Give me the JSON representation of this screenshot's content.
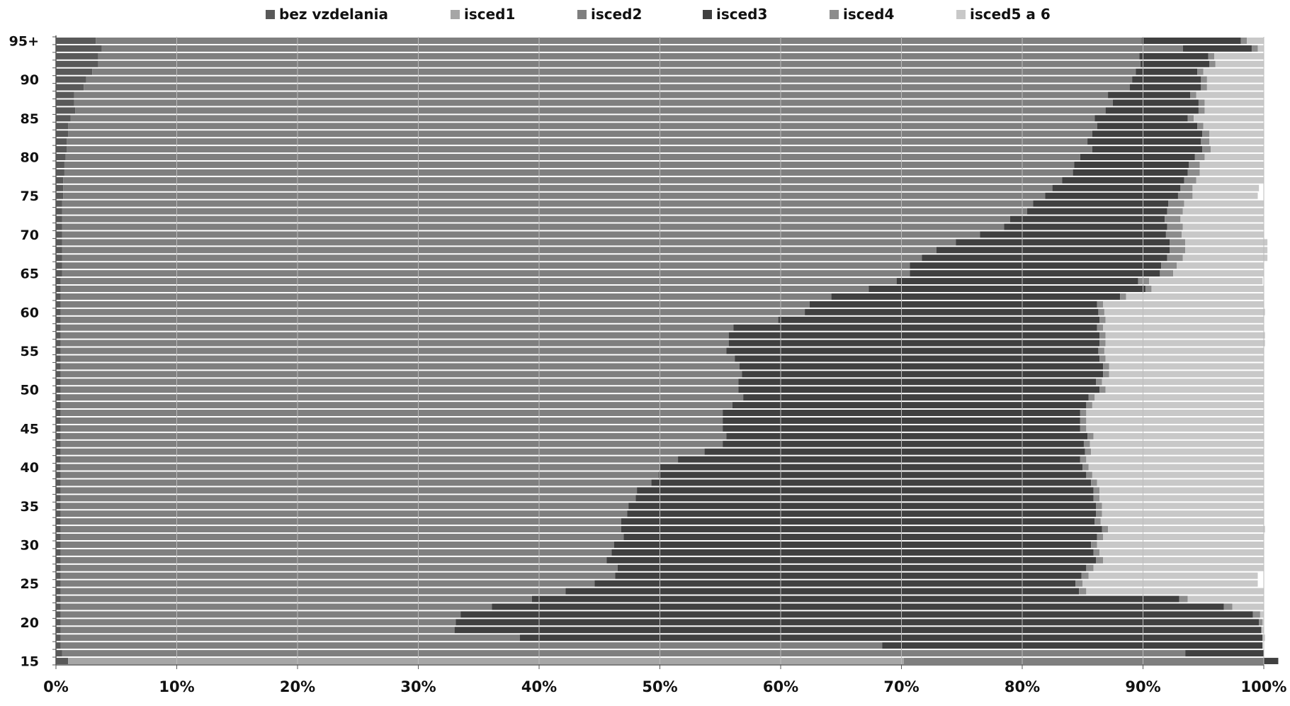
{
  "chart_data": {
    "type": "bar",
    "orientation": "horizontal-stacked-100",
    "title": "",
    "xlabel": "",
    "ylabel": "",
    "xlim": [
      0,
      100
    ],
    "x_ticks": [
      "0%",
      "10%",
      "20%",
      "30%",
      "40%",
      "50%",
      "60%",
      "70%",
      "80%",
      "90%",
      "100%"
    ],
    "y_tick_labels": [
      {
        "age": 15,
        "label": "15"
      },
      {
        "age": 20,
        "label": "20"
      },
      {
        "age": 25,
        "label": "25"
      },
      {
        "age": 30,
        "label": "30"
      },
      {
        "age": 35,
        "label": "35"
      },
      {
        "age": 40,
        "label": "40"
      },
      {
        "age": 45,
        "label": "45"
      },
      {
        "age": 50,
        "label": "50"
      },
      {
        "age": 55,
        "label": "55"
      },
      {
        "age": 60,
        "label": "60"
      },
      {
        "age": 65,
        "label": "65"
      },
      {
        "age": 70,
        "label": "70"
      },
      {
        "age": 75,
        "label": "75"
      },
      {
        "age": 80,
        "label": "80"
      },
      {
        "age": 85,
        "label": "85"
      },
      {
        "age": 90,
        "label": "90"
      },
      {
        "age": 95,
        "label": "95+"
      }
    ],
    "grid": "vertical",
    "legend": "top",
    "categories": [
      15,
      16,
      17,
      18,
      19,
      20,
      21,
      22,
      23,
      24,
      25,
      26,
      27,
      28,
      29,
      30,
      31,
      32,
      33,
      34,
      35,
      36,
      37,
      38,
      39,
      40,
      41,
      42,
      43,
      44,
      45,
      46,
      47,
      48,
      49,
      50,
      51,
      52,
      53,
      54,
      55,
      56,
      57,
      58,
      59,
      60,
      61,
      62,
      63,
      64,
      65,
      66,
      67,
      68,
      69,
      70,
      71,
      72,
      73,
      74,
      75,
      76,
      77,
      78,
      79,
      80,
      81,
      82,
      83,
      84,
      85,
      86,
      87,
      88,
      89,
      90,
      91,
      92,
      93,
      94,
      95
    ],
    "series": [
      {
        "name": "bez vzdelania",
        "color": "#595959",
        "values": [
          1,
          0.5,
          0.4,
          0.4,
          0.4,
          0.4,
          0.4,
          0.4,
          0.4,
          0.4,
          0.4,
          0.4,
          0.4,
          0.4,
          0.4,
          0.4,
          0.4,
          0.4,
          0.4,
          0.4,
          0.4,
          0.4,
          0.4,
          0.4,
          0.4,
          0.4,
          0.4,
          0.4,
          0.4,
          0.4,
          0.4,
          0.4,
          0.4,
          0.4,
          0.4,
          0.4,
          0.4,
          0.4,
          0.4,
          0.4,
          0.4,
          0.4,
          0.4,
          0.4,
          0.4,
          0.4,
          0.4,
          0.4,
          0.4,
          0.4,
          0.5,
          0.5,
          0.5,
          0.5,
          0.5,
          0.5,
          0.5,
          0.5,
          0.5,
          0.5,
          0.6,
          0.6,
          0.6,
          0.7,
          0.7,
          0.8,
          0.9,
          0.9,
          1.0,
          1.0,
          1.2,
          1.6,
          1.5,
          1.5,
          2.3,
          2.5,
          3.0,
          3.5,
          3.5,
          3.8,
          3.3
        ]
      },
      {
        "name": "isced1",
        "color": "#a6a6a6",
        "values": [
          69.2,
          0,
          0,
          0,
          0,
          0,
          0,
          0,
          0,
          0,
          0,
          0,
          0,
          0,
          0,
          0,
          0,
          0,
          0,
          0,
          0,
          0,
          0,
          0,
          0,
          0,
          0,
          0,
          0,
          0,
          0,
          0,
          0,
          0,
          0,
          0,
          0,
          0,
          0,
          0,
          0,
          0,
          0,
          0,
          0,
          0,
          0,
          0,
          0,
          0,
          0,
          0,
          0,
          0,
          0,
          0,
          0,
          0,
          0,
          0,
          0,
          0,
          0,
          0,
          0,
          0,
          0,
          0,
          0,
          0,
          0,
          0,
          0,
          0,
          0,
          0,
          0,
          0,
          0,
          0,
          0
        ]
      },
      {
        "name": "isced2",
        "color": "#7f7f7f",
        "values": [
          29.8,
          93.0,
          68.0,
          38.0,
          32.6,
          32.7,
          33.1,
          35.7,
          39.0,
          41.8,
          44.2,
          45.9,
          46.1,
          45.2,
          45.6,
          45.8,
          46.6,
          46.4,
          46.4,
          46.9,
          47.0,
          47.6,
          47.7,
          48.9,
          49.5,
          49.6,
          51.1,
          53.3,
          54.8,
          55.1,
          54.8,
          54.8,
          54.8,
          55.6,
          56.5,
          56.1,
          56.1,
          56.4,
          56.2,
          55.8,
          55.1,
          55.3,
          55.3,
          55.7,
          59.4,
          61.6,
          62.0,
          63.8,
          66.9,
          69.2,
          70.2,
          70.2,
          71.2,
          72.4,
          74.0,
          76.0,
          78.0,
          78.5,
          79.9,
          80.4,
          81.3,
          81.9,
          82.7,
          83.5,
          83.6,
          84.0,
          84.9,
          84.5,
          84.8,
          85.2,
          84.8,
          85.3,
          86.0,
          85.6,
          86.6,
          86.6,
          86.4,
          86.3,
          86.2,
          89.5,
          86.6
        ]
      },
      {
        "name": "isced3",
        "color": "#404040",
        "values": [
          1.2,
          6.5,
          31.5,
          61.5,
          66.8,
          66.5,
          65.6,
          60.6,
          53.6,
          42.5,
          39.8,
          38.6,
          38.8,
          40.5,
          39.9,
          39.5,
          39.2,
          39.8,
          39.2,
          38.8,
          38.7,
          37.9,
          37.8,
          36.4,
          35.4,
          35.0,
          33.3,
          31.5,
          29.9,
          29.9,
          29.6,
          29.6,
          29.6,
          29.3,
          28.6,
          29.9,
          29.6,
          29.9,
          30.1,
          30.2,
          30.8,
          30.7,
          30.7,
          30.1,
          26.6,
          24.3,
          23.8,
          23.9,
          22.9,
          20.0,
          20.7,
          20.8,
          20.3,
          19.3,
          17.7,
          15.4,
          13.5,
          12.8,
          11.6,
          11.2,
          11.0,
          10.6,
          10.1,
          9.5,
          9.5,
          9.5,
          9.1,
          9.4,
          9.1,
          8.3,
          7.7,
          7.7,
          7.1,
          6.8,
          5.9,
          5.7,
          5.1,
          5.7,
          5.7,
          5.7,
          8.2
        ]
      },
      {
        "name": "isced4",
        "color": "#8c8c8c",
        "values": [
          0,
          0,
          0,
          0,
          0,
          0.3,
          0.6,
          0.7,
          0.7,
          0.6,
          0.6,
          0.6,
          0.6,
          0.6,
          0.5,
          0.5,
          0.5,
          0.5,
          0.5,
          0.5,
          0.5,
          0.5,
          0.5,
          0.5,
          0.5,
          0.5,
          0.5,
          0.5,
          0.5,
          0.5,
          0.5,
          0.5,
          0.5,
          0.5,
          0.5,
          0.5,
          0.5,
          0.5,
          0.5,
          0.5,
          0.5,
          0.5,
          0.5,
          0.5,
          0.5,
          0.5,
          0.5,
          0.5,
          0.5,
          0.9,
          1.1,
          1.3,
          1.3,
          1.3,
          1.3,
          1.3,
          1.3,
          1.3,
          1.3,
          1.3,
          1.2,
          1.0,
          1.0,
          1.0,
          0.9,
          0.8,
          0.7,
          0.7,
          0.6,
          0.5,
          0.5,
          0.5,
          0.5,
          0.5,
          0.5,
          0.5,
          0.5,
          0.5,
          0.5,
          0.5,
          0.5
        ]
      },
      {
        "name": "isced5 a 6",
        "color": "#c8c8c8",
        "values": [
          0,
          0,
          0,
          0.2,
          0.2,
          0.1,
          0.3,
          2.6,
          6.3,
          14.7,
          14.5,
          14.0,
          14.1,
          13.3,
          13.6,
          13.8,
          13.3,
          13.0,
          13.5,
          13.4,
          13.4,
          13.6,
          13.6,
          13.8,
          14.2,
          14.5,
          14.7,
          14.3,
          14.4,
          14.1,
          14.7,
          14.7,
          14.7,
          14.2,
          14.0,
          13.1,
          13.4,
          12.8,
          12.8,
          13.1,
          13.2,
          13.2,
          13.2,
          13.3,
          13.1,
          13.3,
          13.3,
          11.4,
          9.3,
          9.4,
          7.5,
          7.2,
          7.0,
          6.8,
          6.8,
          6.8,
          6.7,
          6.9,
          6.7,
          6.6,
          5.4,
          5.5,
          5.6,
          5.3,
          5.3,
          4.9,
          4.4,
          4.5,
          4.5,
          5.0,
          5.8,
          4.9,
          4.9,
          5.6,
          4.7,
          4.7,
          5.0,
          4.0,
          4.1,
          0.5,
          1.4
        ]
      }
    ]
  }
}
